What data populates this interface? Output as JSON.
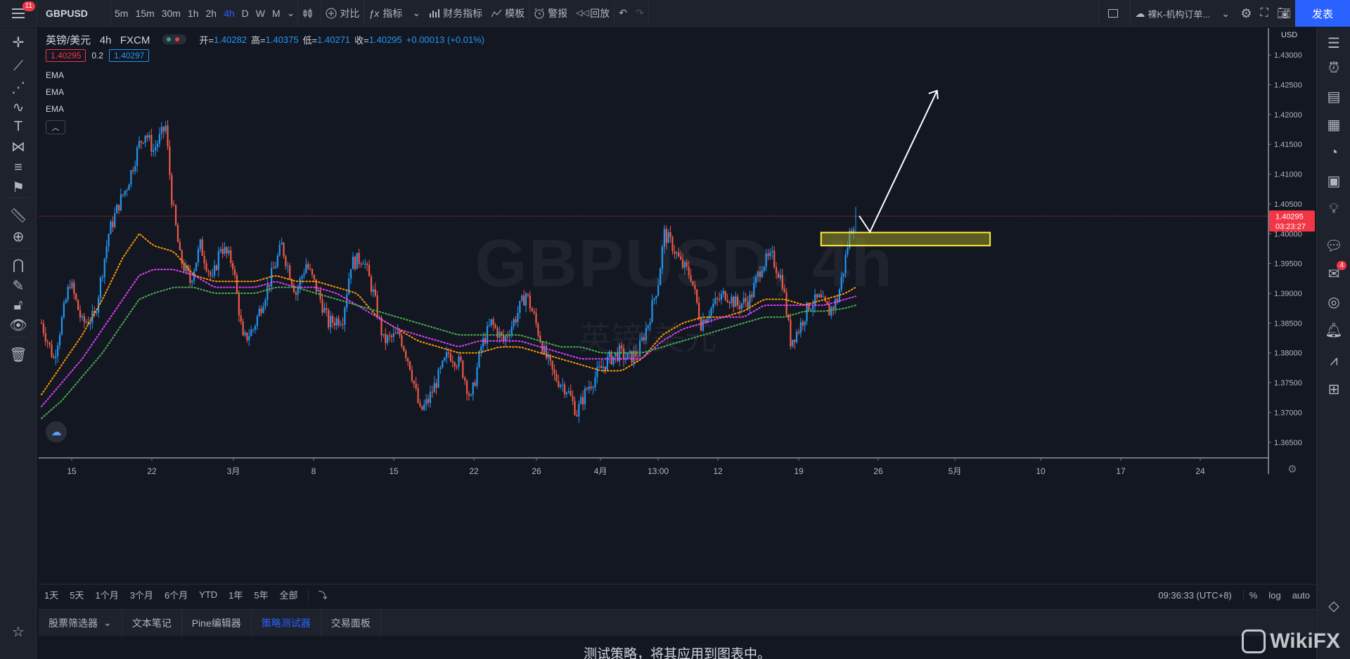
{
  "topbar": {
    "notification_count": "11",
    "symbol": "GBPUSD",
    "intervals": [
      "5m",
      "15m",
      "30m",
      "1h",
      "2h",
      "4h",
      "D",
      "W",
      "M"
    ],
    "active_interval": "4h",
    "compare_label": "对比",
    "indicators_label": "指标",
    "financials_label": "财务指标",
    "templates_label": "模板",
    "alert_label": "警报",
    "replay_label": "回放",
    "layout_name": "裸K-机构订单...",
    "publish_label": "发表"
  },
  "legend": {
    "title": "英镑/美元",
    "interval": "4h",
    "source": "FXCM",
    "open_label": "开=",
    "open": "1.40282",
    "high_label": "高=",
    "high": "1.40375",
    "low_label": "低=",
    "low": "1.40271",
    "close_label": "收=",
    "close": "1.40295",
    "change": "+0.00013 (+0.01%)",
    "bid": "1.40295",
    "spread": "0.2",
    "ask": "1.40297",
    "indicators": [
      "EMA",
      "EMA",
      "EMA"
    ],
    "collapse_icon": "chevron-up-icon"
  },
  "watermark": {
    "line1": "GBPUSD, 4h",
    "line2": "英镑/美元"
  },
  "price_axis": {
    "currency": "USD",
    "ticks": [
      "1.43000",
      "1.42500",
      "1.42000",
      "1.41500",
      "1.41000",
      "1.40500",
      "1.40000",
      "1.39500",
      "1.39000",
      "1.38500",
      "1.38000",
      "1.37500",
      "1.37000",
      "1.36500"
    ],
    "last_price": "1.40295",
    "countdown": "03:23:27"
  },
  "time_axis": {
    "ticks": [
      "15",
      "22",
      "3月",
      "8",
      "15",
      "22",
      "26",
      "4月",
      "13:00",
      "12",
      "19",
      "26",
      "5月",
      "10",
      "17",
      "24"
    ]
  },
  "colors": {
    "up": "#2196f3",
    "down": "#f05a47",
    "ema_fast": "#ff9800",
    "ema_mid": "#e040fb",
    "ema_slow": "#4caf50",
    "zone_border": "#ffeb3b",
    "last_price": "#f23645",
    "accent": "#2962ff"
  },
  "chart_data": {
    "type": "candlestick",
    "symbol": "GBPUSD",
    "interval": "4h",
    "ylim": [
      1.3625,
      1.4345
    ],
    "x_ticks": [
      "15",
      "22",
      "3月",
      "8",
      "15",
      "22",
      "26",
      "4月",
      "13:00",
      "12",
      "19",
      "26",
      "5月",
      "10",
      "17",
      "24"
    ],
    "close_path_anchors": [
      [
        0,
        1.385
      ],
      [
        6,
        1.379
      ],
      [
        14,
        1.392
      ],
      [
        20,
        1.385
      ],
      [
        26,
        1.386
      ],
      [
        33,
        1.4
      ],
      [
        38,
        1.405
      ],
      [
        42,
        1.408
      ],
      [
        48,
        1.415
      ],
      [
        51,
        1.417
      ],
      [
        55,
        1.414
      ],
      [
        61,
        1.418
      ],
      [
        64,
        1.406
      ],
      [
        68,
        1.396
      ],
      [
        73,
        1.392
      ],
      [
        78,
        1.398
      ],
      [
        84,
        1.392
      ],
      [
        88,
        1.398
      ],
      [
        94,
        1.395
      ],
      [
        99,
        1.382
      ],
      [
        104,
        1.384
      ],
      [
        110,
        1.39
      ],
      [
        118,
        1.398
      ],
      [
        125,
        1.39
      ],
      [
        130,
        1.395
      ],
      [
        136,
        1.39
      ],
      [
        141,
        1.385
      ],
      [
        148,
        1.386
      ],
      [
        152,
        1.395
      ],
      [
        158,
        1.396
      ],
      [
        163,
        1.39
      ],
      [
        168,
        1.382
      ],
      [
        176,
        1.383
      ],
      [
        181,
        1.378
      ],
      [
        186,
        1.37
      ],
      [
        190,
        1.372
      ],
      [
        195,
        1.376
      ],
      [
        200,
        1.38
      ],
      [
        206,
        1.378
      ],
      [
        211,
        1.372
      ],
      [
        216,
        1.381
      ],
      [
        221,
        1.385
      ],
      [
        227,
        1.382
      ],
      [
        233,
        1.386
      ],
      [
        238,
        1.39
      ],
      [
        242,
        1.386
      ],
      [
        247,
        1.38
      ],
      [
        252,
        1.376
      ],
      [
        258,
        1.374
      ],
      [
        263,
        1.37
      ],
      [
        268,
        1.374
      ],
      [
        274,
        1.377
      ],
      [
        279,
        1.379
      ],
      [
        284,
        1.38
      ],
      [
        288,
        1.379
      ],
      [
        293,
        1.38
      ],
      [
        298,
        1.385
      ],
      [
        303,
        1.392
      ],
      [
        306,
        1.4
      ],
      [
        310,
        1.398
      ],
      [
        314,
        1.395
      ],
      [
        319,
        1.393
      ],
      [
        324,
        1.385
      ],
      [
        330,
        1.388
      ],
      [
        336,
        1.39
      ],
      [
        342,
        1.388
      ],
      [
        348,
        1.389
      ],
      [
        354,
        1.395
      ],
      [
        359,
        1.396
      ],
      [
        364,
        1.392
      ],
      [
        368,
        1.382
      ],
      [
        372,
        1.384
      ],
      [
        377,
        1.388
      ],
      [
        382,
        1.389
      ],
      [
        387,
        1.387
      ],
      [
        391,
        1.389
      ],
      [
        394,
        1.394
      ],
      [
        397,
        1.4
      ],
      [
        400,
        1.403
      ]
    ],
    "ema_series": [
      {
        "color": "#ff9800",
        "values": [
          [
            0,
            1.373
          ],
          [
            10,
            1.378
          ],
          [
            20,
            1.383
          ],
          [
            30,
            1.389
          ],
          [
            40,
            1.396
          ],
          [
            48,
            1.4
          ],
          [
            55,
            1.398
          ],
          [
            65,
            1.397
          ],
          [
            75,
            1.393
          ],
          [
            85,
            1.392
          ],
          [
            95,
            1.392
          ],
          [
            105,
            1.392
          ],
          [
            115,
            1.393
          ],
          [
            125,
            1.392
          ],
          [
            135,
            1.392
          ],
          [
            145,
            1.391
          ],
          [
            155,
            1.39
          ],
          [
            165,
            1.386
          ],
          [
            175,
            1.384
          ],
          [
            185,
            1.382
          ],
          [
            195,
            1.381
          ],
          [
            205,
            1.38
          ],
          [
            215,
            1.38
          ],
          [
            225,
            1.381
          ],
          [
            235,
            1.381
          ],
          [
            245,
            1.38
          ],
          [
            255,
            1.379
          ],
          [
            265,
            1.378
          ],
          [
            275,
            1.377
          ],
          [
            285,
            1.377
          ],
          [
            295,
            1.379
          ],
          [
            305,
            1.383
          ],
          [
            315,
            1.385
          ],
          [
            325,
            1.386
          ],
          [
            335,
            1.386
          ],
          [
            345,
            1.387
          ],
          [
            355,
            1.389
          ],
          [
            365,
            1.389
          ],
          [
            375,
            1.388
          ],
          [
            385,
            1.389
          ],
          [
            395,
            1.39
          ],
          [
            400,
            1.391
          ]
        ]
      },
      {
        "color": "#e040fb",
        "values": [
          [
            0,
            1.371
          ],
          [
            10,
            1.375
          ],
          [
            20,
            1.379
          ],
          [
            30,
            1.384
          ],
          [
            40,
            1.389
          ],
          [
            48,
            1.393
          ],
          [
            55,
            1.394
          ],
          [
            65,
            1.394
          ],
          [
            75,
            1.393
          ],
          [
            85,
            1.391
          ],
          [
            95,
            1.391
          ],
          [
            105,
            1.391
          ],
          [
            115,
            1.392
          ],
          [
            125,
            1.391
          ],
          [
            135,
            1.391
          ],
          [
            145,
            1.39
          ],
          [
            155,
            1.388
          ],
          [
            165,
            1.386
          ],
          [
            175,
            1.384
          ],
          [
            185,
            1.383
          ],
          [
            195,
            1.382
          ],
          [
            205,
            1.381
          ],
          [
            215,
            1.382
          ],
          [
            225,
            1.382
          ],
          [
            235,
            1.382
          ],
          [
            245,
            1.381
          ],
          [
            255,
            1.38
          ],
          [
            265,
            1.379
          ],
          [
            275,
            1.379
          ],
          [
            285,
            1.379
          ],
          [
            295,
            1.379
          ],
          [
            305,
            1.382
          ],
          [
            315,
            1.384
          ],
          [
            325,
            1.385
          ],
          [
            335,
            1.386
          ],
          [
            345,
            1.386
          ],
          [
            355,
            1.388
          ],
          [
            365,
            1.388
          ],
          [
            375,
            1.388
          ],
          [
            385,
            1.388
          ],
          [
            395,
            1.389
          ],
          [
            400,
            1.3895
          ]
        ]
      },
      {
        "color": "#4caf50",
        "values": [
          [
            0,
            1.369
          ],
          [
            10,
            1.372
          ],
          [
            20,
            1.376
          ],
          [
            30,
            1.38
          ],
          [
            40,
            1.385
          ],
          [
            48,
            1.389
          ],
          [
            55,
            1.39
          ],
          [
            65,
            1.391
          ],
          [
            75,
            1.391
          ],
          [
            85,
            1.39
          ],
          [
            95,
            1.39
          ],
          [
            105,
            1.39
          ],
          [
            115,
            1.391
          ],
          [
            125,
            1.391
          ],
          [
            135,
            1.39
          ],
          [
            145,
            1.389
          ],
          [
            155,
            1.388
          ],
          [
            165,
            1.387
          ],
          [
            175,
            1.386
          ],
          [
            185,
            1.385
          ],
          [
            195,
            1.384
          ],
          [
            205,
            1.383
          ],
          [
            215,
            1.383
          ],
          [
            225,
            1.383
          ],
          [
            235,
            1.383
          ],
          [
            245,
            1.382
          ],
          [
            255,
            1.381
          ],
          [
            265,
            1.381
          ],
          [
            275,
            1.38
          ],
          [
            285,
            1.38
          ],
          [
            295,
            1.38
          ],
          [
            305,
            1.381
          ],
          [
            315,
            1.382
          ],
          [
            325,
            1.383
          ],
          [
            335,
            1.384
          ],
          [
            345,
            1.385
          ],
          [
            355,
            1.386
          ],
          [
            365,
            1.386
          ],
          [
            375,
            1.387
          ],
          [
            385,
            1.387
          ],
          [
            395,
            1.3875
          ],
          [
            400,
            1.388
          ]
        ]
      }
    ],
    "last_price": 1.40295,
    "annotations": {
      "zone_price_top": 1.4002,
      "zone_price_bottom": 1.398,
      "arrow_from_price": 1.4003,
      "arrow_to_price": 1.424
    }
  },
  "rangebar": {
    "ranges": [
      "1天",
      "5天",
      "1个月",
      "3个月",
      "6个月",
      "YTD",
      "1年",
      "5年",
      "全部"
    ],
    "goto_icon": "goto-date-icon",
    "clock": "09:36:33 (UTC+8)",
    "percent": "%",
    "log": "log",
    "auto": "auto"
  },
  "bottom_panel": {
    "tabs": [
      "股票筛选器",
      "文本笔记",
      "Pine编辑器",
      "策略测试器",
      "交易面板"
    ],
    "active_tab": "策略测试器",
    "message": "测试策略，将其应用到图表中。"
  },
  "right_sidebar": {
    "badge": "4"
  },
  "watermark_brand": "WikiFX"
}
